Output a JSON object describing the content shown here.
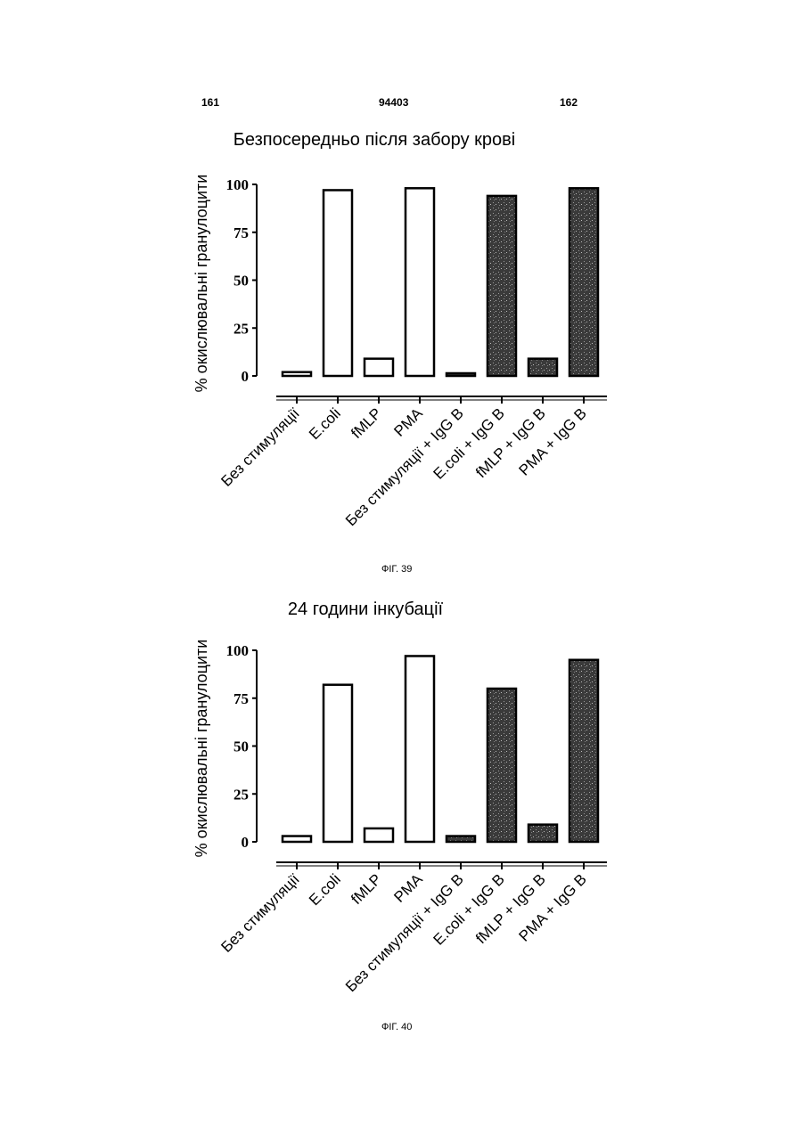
{
  "header": {
    "left_page": "161",
    "patent_number": "94403",
    "right_page": "162"
  },
  "colors": {
    "stimulated_with_igg": "#3a3a3a",
    "control": "#ffffff",
    "outline": "#000000"
  },
  "chart_data": [
    {
      "type": "bar",
      "title": "Безпосередньо після забору крові",
      "ylabel": "% окислювальні гранулоцити",
      "xlabel": "",
      "ylim": [
        0,
        100
      ],
      "yticks": [
        "0",
        "25",
        "50",
        "75",
        "100"
      ],
      "grid": false,
      "categories": [
        "Без стимуляції",
        "E.coli",
        "fMLP",
        "PMA",
        "Без стимуляції + IgG B",
        "E.coli + IgG B",
        "fMLP + IgG B",
        "PMA + IgG B"
      ],
      "values": [
        2,
        97,
        9,
        98,
        1,
        94,
        9,
        98
      ],
      "bar_fill": [
        "white",
        "white",
        "white",
        "white",
        "dark",
        "dark",
        "dark",
        "dark"
      ],
      "figure_label": "ФІГ. 39"
    },
    {
      "type": "bar",
      "title": "24 години інкубації",
      "ylabel": "% окислювальні гранулоцити",
      "xlabel": "",
      "ylim": [
        0,
        100
      ],
      "yticks": [
        "0",
        "25",
        "50",
        "75",
        "100"
      ],
      "grid": false,
      "categories": [
        "Без стимуляції",
        "E.coli",
        "fMLP",
        "PMA",
        "Без стимуляції + IgG B",
        "E.coli + IgG B",
        "fMLP + IgG B",
        "PMA + IgG B"
      ],
      "values": [
        3,
        82,
        7,
        97,
        3,
        80,
        9,
        95
      ],
      "bar_fill": [
        "white",
        "white",
        "white",
        "white",
        "dark",
        "dark",
        "dark",
        "dark"
      ],
      "figure_label": "ФІГ. 40"
    }
  ]
}
